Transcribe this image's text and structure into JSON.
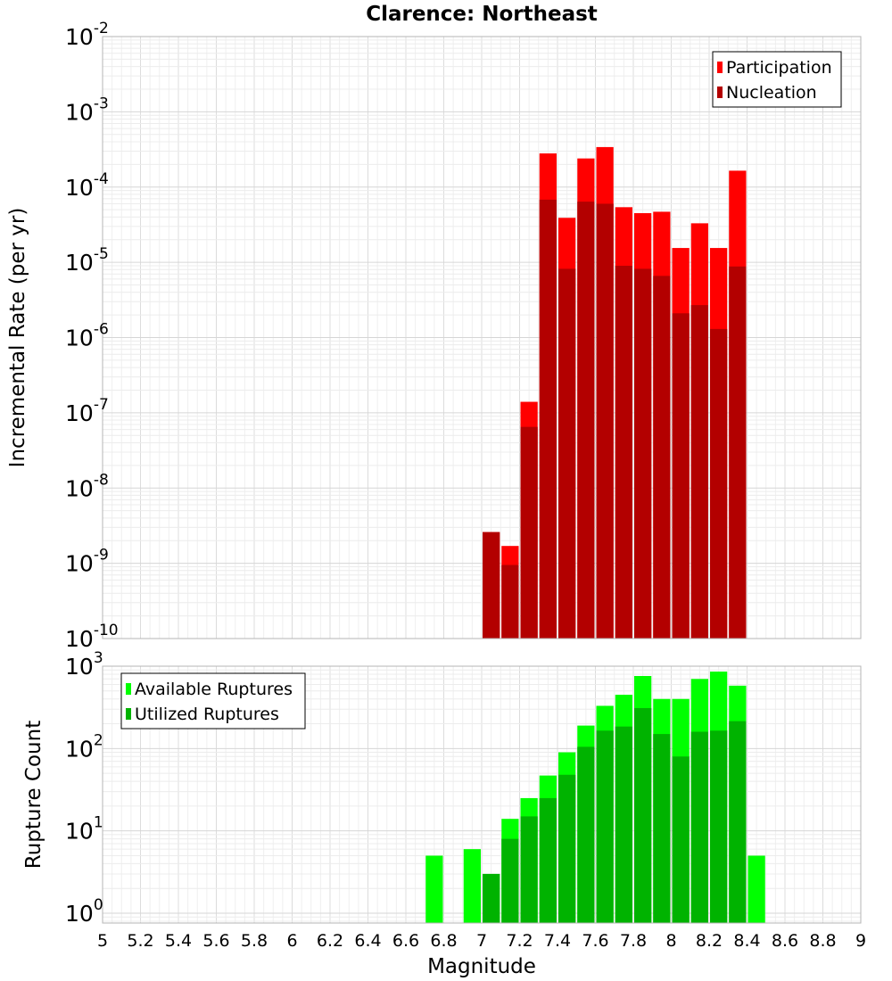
{
  "chart_data": [
    {
      "type": "bar",
      "title": "Clarence: Northeast",
      "xlabel": "",
      "ylabel": "Incremental Rate (per yr)",
      "yscale": "log",
      "ylim": [
        1e-10,
        0.01
      ],
      "xlim": [
        5,
        9
      ],
      "bar_width": 0.1,
      "grid": true,
      "legend_position": "top-right",
      "y_tick_labels": [
        {
          "base": "10",
          "exp": "-10",
          "value": 1e-10
        },
        {
          "base": "10",
          "exp": "-9",
          "value": 1e-09
        },
        {
          "base": "10",
          "exp": "-8",
          "value": 1e-08
        },
        {
          "base": "10",
          "exp": "-7",
          "value": 1e-07
        },
        {
          "base": "10",
          "exp": "-6",
          "value": 1e-06
        },
        {
          "base": "10",
          "exp": "-5",
          "value": 1e-05
        },
        {
          "base": "10",
          "exp": "-4",
          "value": 0.0001
        },
        {
          "base": "10",
          "exp": "-3",
          "value": 0.001
        },
        {
          "base": "10",
          "exp": "-2",
          "value": 0.01
        }
      ],
      "series": [
        {
          "name": "Participation",
          "color": "#ff0000",
          "x": [
            7.05,
            7.15,
            7.25,
            7.35,
            7.45,
            7.55,
            7.65,
            7.75,
            7.85,
            7.95,
            8.05,
            8.15,
            8.25,
            8.35
          ],
          "values": [
            2.6e-09,
            1.7e-09,
            1.4e-07,
            0.00028,
            3.9e-05,
            0.00024,
            0.00034,
            5.4e-05,
            4.5e-05,
            4.7e-05,
            1.55e-05,
            3.3e-05,
            1.55e-05,
            0.000165
          ]
        },
        {
          "name": "Nucleation",
          "color": "#b30000",
          "x": [
            7.05,
            7.15,
            7.25,
            7.35,
            7.45,
            7.55,
            7.65,
            7.75,
            7.85,
            7.95,
            8.05,
            8.15,
            8.25,
            8.35
          ],
          "values": [
            2.6e-09,
            9.5e-10,
            6.5e-08,
            6.8e-05,
            8.2e-06,
            6.4e-05,
            6e-05,
            9e-06,
            8.2e-06,
            6.6e-06,
            2.1e-06,
            2.7e-06,
            1.3e-06,
            8.8e-06
          ]
        }
      ]
    },
    {
      "type": "bar",
      "title": "",
      "xlabel": "Magnitude",
      "ylabel": "Rupture Count",
      "yscale": "log",
      "ylim": [
        0.76,
        1000
      ],
      "xlim": [
        5,
        9
      ],
      "bar_width": 0.1,
      "grid": true,
      "legend_position": "top-left",
      "x_tick_labels": [
        "5",
        "5.2",
        "5.4",
        "5.6",
        "5.8",
        "6",
        "6.2",
        "6.4",
        "6.6",
        "6.8",
        "7",
        "7.2",
        "7.4",
        "7.6",
        "7.8",
        "8",
        "8.2",
        "8.4",
        "8.6",
        "8.8",
        "9"
      ],
      "y_tick_labels": [
        {
          "base": "10",
          "exp": "0",
          "value": 1
        },
        {
          "base": "10",
          "exp": "1",
          "value": 10
        },
        {
          "base": "10",
          "exp": "2",
          "value": 100
        },
        {
          "base": "10",
          "exp": "3",
          "value": 1000
        }
      ],
      "series": [
        {
          "name": "Available Ruptures",
          "color": "#00ff00",
          "x": [
            6.75,
            6.95,
            7.05,
            7.15,
            7.25,
            7.35,
            7.45,
            7.55,
            7.65,
            7.75,
            7.85,
            7.95,
            8.05,
            8.15,
            8.25,
            8.35,
            8.45
          ],
          "values": [
            5,
            6,
            3,
            14,
            25,
            47,
            90,
            190,
            330,
            450,
            760,
            400,
            400,
            700,
            860,
            580,
            5
          ]
        },
        {
          "name": "Utilized Ruptures",
          "color": "#00b300",
          "x": [
            7.05,
            7.15,
            7.25,
            7.35,
            7.45,
            7.55,
            7.65,
            7.75,
            7.85,
            7.95,
            8.05,
            8.15,
            8.25,
            8.35
          ],
          "values": [
            3,
            8,
            15,
            25,
            48,
            105,
            165,
            185,
            310,
            150,
            80,
            160,
            165,
            215
          ]
        }
      ]
    }
  ]
}
